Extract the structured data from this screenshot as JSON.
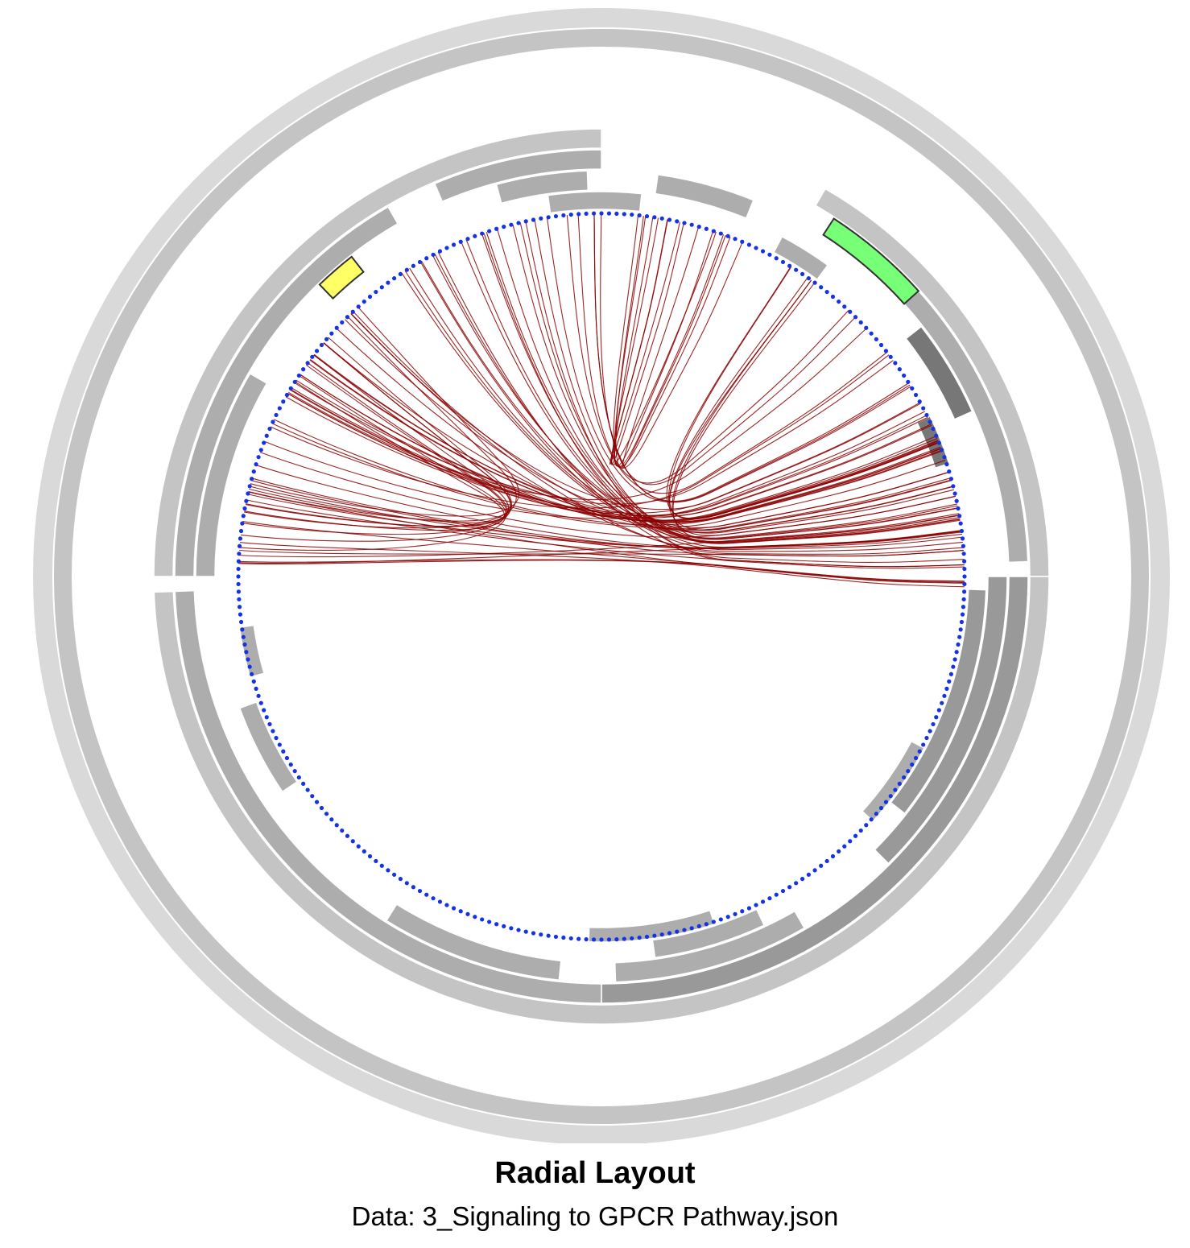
{
  "title": "Radial Layout",
  "subtitle": "Data: 3_Signaling to GPCR Pathway.json",
  "colors": {
    "node": "#1432e6",
    "edge": "#8b0000",
    "ring_outer": "#d9d9d9",
    "ring_mid": "#c4c4c4",
    "ring_inner": "#adadad",
    "ring_dark": "#999999",
    "ring_darker": "#777777",
    "highlight_yellow": "#ffff66",
    "highlight_green": "#77ff77",
    "background": "#ffffff"
  },
  "diagram": {
    "node_count": 300,
    "ring_segments": [
      {
        "level": 0,
        "start": 0,
        "end": 360,
        "shade": "ring_outer"
      },
      {
        "level": 1,
        "start": 0,
        "end": 360,
        "shade": "ring_mid"
      },
      {
        "level": 2,
        "start": 30,
        "end": 90,
        "shade": "ring_mid"
      },
      {
        "level": 2,
        "start": 90,
        "end": 268,
        "shade": "ring_mid"
      },
      {
        "level": 2,
        "start": 270,
        "end": 360,
        "shade": "ring_mid"
      },
      {
        "level": 3,
        "start": 90,
        "end": 180,
        "shade": "ring_dark"
      },
      {
        "level": 3,
        "start": 180,
        "end": 268,
        "shade": "ring_inner"
      },
      {
        "level": 3,
        "start": 270,
        "end": 330,
        "shade": "ring_inner"
      },
      {
        "level": 3,
        "start": 337,
        "end": 360,
        "shade": "ring_inner"
      },
      {
        "level": 3,
        "start": 45,
        "end": 88,
        "shade": "ring_inner"
      },
      {
        "level": 4,
        "start": 90,
        "end": 135,
        "shade": "ring_dark"
      },
      {
        "level": 4,
        "start": 150,
        "end": 178,
        "shade": "ring_inner"
      },
      {
        "level": 4,
        "start": 186,
        "end": 212,
        "shade": "ring_inner"
      },
      {
        "level": 4,
        "start": 270,
        "end": 300,
        "shade": "ring_inner"
      },
      {
        "level": 4,
        "start": 345,
        "end": 358,
        "shade": "ring_inner"
      },
      {
        "level": 4,
        "start": 8,
        "end": 22,
        "shade": "ring_inner"
      },
      {
        "level": 4,
        "start": 52,
        "end": 66,
        "shade": "ring_darker"
      },
      {
        "level": 5,
        "start": 92,
        "end": 128,
        "shade": "ring_dark"
      },
      {
        "level": 5,
        "start": 155,
        "end": 172,
        "shade": "ring_inner"
      },
      {
        "level": 5,
        "start": 236,
        "end": 250,
        "shade": "ring_inner"
      },
      {
        "level": 5,
        "start": 352,
        "end": 6,
        "shade": "ring_inner"
      },
      {
        "level": 5,
        "start": 28,
        "end": 36,
        "shade": "ring_inner"
      },
      {
        "level": 6,
        "start": 118,
        "end": 132,
        "shade": "ring_inner"
      },
      {
        "level": 6,
        "start": 162,
        "end": 182,
        "shade": "ring_inner"
      },
      {
        "level": 6,
        "start": 254,
        "end": 262,
        "shade": "ring_inner"
      },
      {
        "level": 6,
        "start": 64,
        "end": 72,
        "shade": "ring_darker"
      }
    ],
    "highlights": [
      {
        "label_color": "highlight_yellow",
        "level": 4,
        "start": 316,
        "end": 322
      },
      {
        "label_color": "highlight_green",
        "level": 3,
        "start": 33,
        "end": 48
      }
    ]
  }
}
